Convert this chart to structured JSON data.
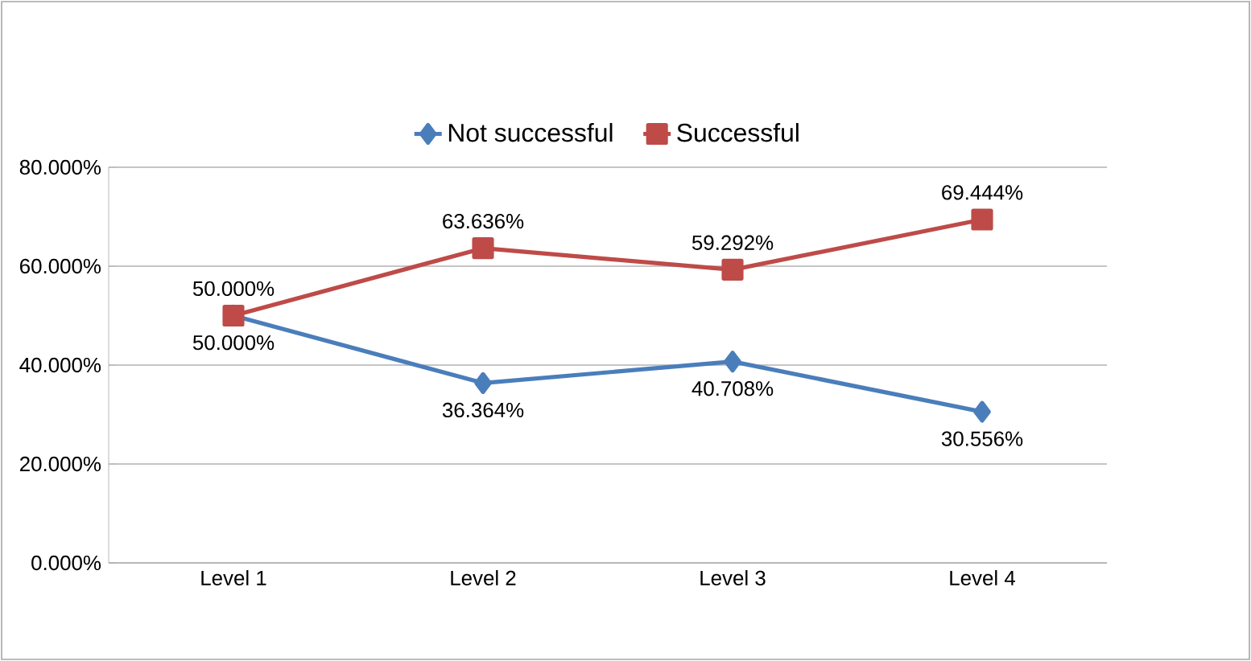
{
  "chart_data": {
    "type": "line",
    "categories": [
      "Level 1",
      "Level 2",
      "Level 3",
      "Level 4"
    ],
    "series": [
      {
        "name": "Not successful",
        "color": "#4a7ebb",
        "marker": "diamond",
        "values": [
          50.0,
          36.364,
          40.708,
          30.556
        ],
        "value_labels": [
          "50.000%",
          "36.364%",
          "40.708%",
          "30.556%"
        ]
      },
      {
        "name": "Successful",
        "color": "#be4b48",
        "marker": "square",
        "values": [
          50.0,
          63.636,
          59.292,
          69.444
        ],
        "value_labels": [
          "50.000%",
          "63.636%",
          "59.292%",
          "69.444%"
        ]
      }
    ],
    "ylim": [
      0,
      80
    ],
    "yticks": [
      {
        "value": 0,
        "label": "0.000%"
      },
      {
        "value": 20,
        "label": "20.000%"
      },
      {
        "value": 40,
        "label": "40.000%"
      },
      {
        "value": 60,
        "label": "60.000%"
      },
      {
        "value": 80,
        "label": "80.000%"
      }
    ],
    "grid": "y",
    "legend": "top"
  }
}
